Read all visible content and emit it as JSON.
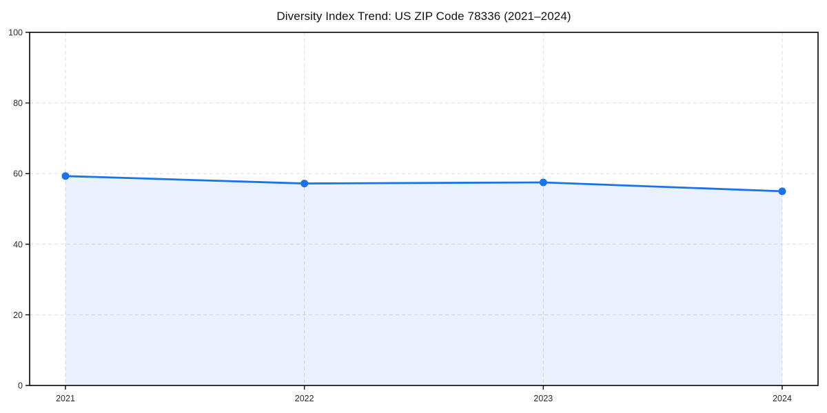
{
  "page": {
    "background": "#ffffff"
  },
  "chart_data": {
    "type": "area",
    "title": "Diversity Index Trend: US ZIP Code 78336 (2021–2024)",
    "categories": [
      "2021",
      "2022",
      "2023",
      "2024"
    ],
    "series": [
      {
        "name": "Diversity Index",
        "values": [
          59.3,
          57.2,
          57.5,
          55.0
        ]
      }
    ],
    "xlabel": "",
    "ylabel": "",
    "ylim": [
      0,
      100
    ],
    "yticks": [
      0,
      20,
      40,
      60,
      80,
      100
    ],
    "grid": "dashed",
    "grid_axes": "both",
    "legend_position": "none",
    "line_color": "#1a73e8",
    "marker": "circle",
    "fill_color": "#1a73e8",
    "fill_opacity": 0.1,
    "grid_color": "#dedede",
    "axis_color": "#000000",
    "tick_label_color": "#2b2b2b",
    "title_color": "#111111"
  }
}
